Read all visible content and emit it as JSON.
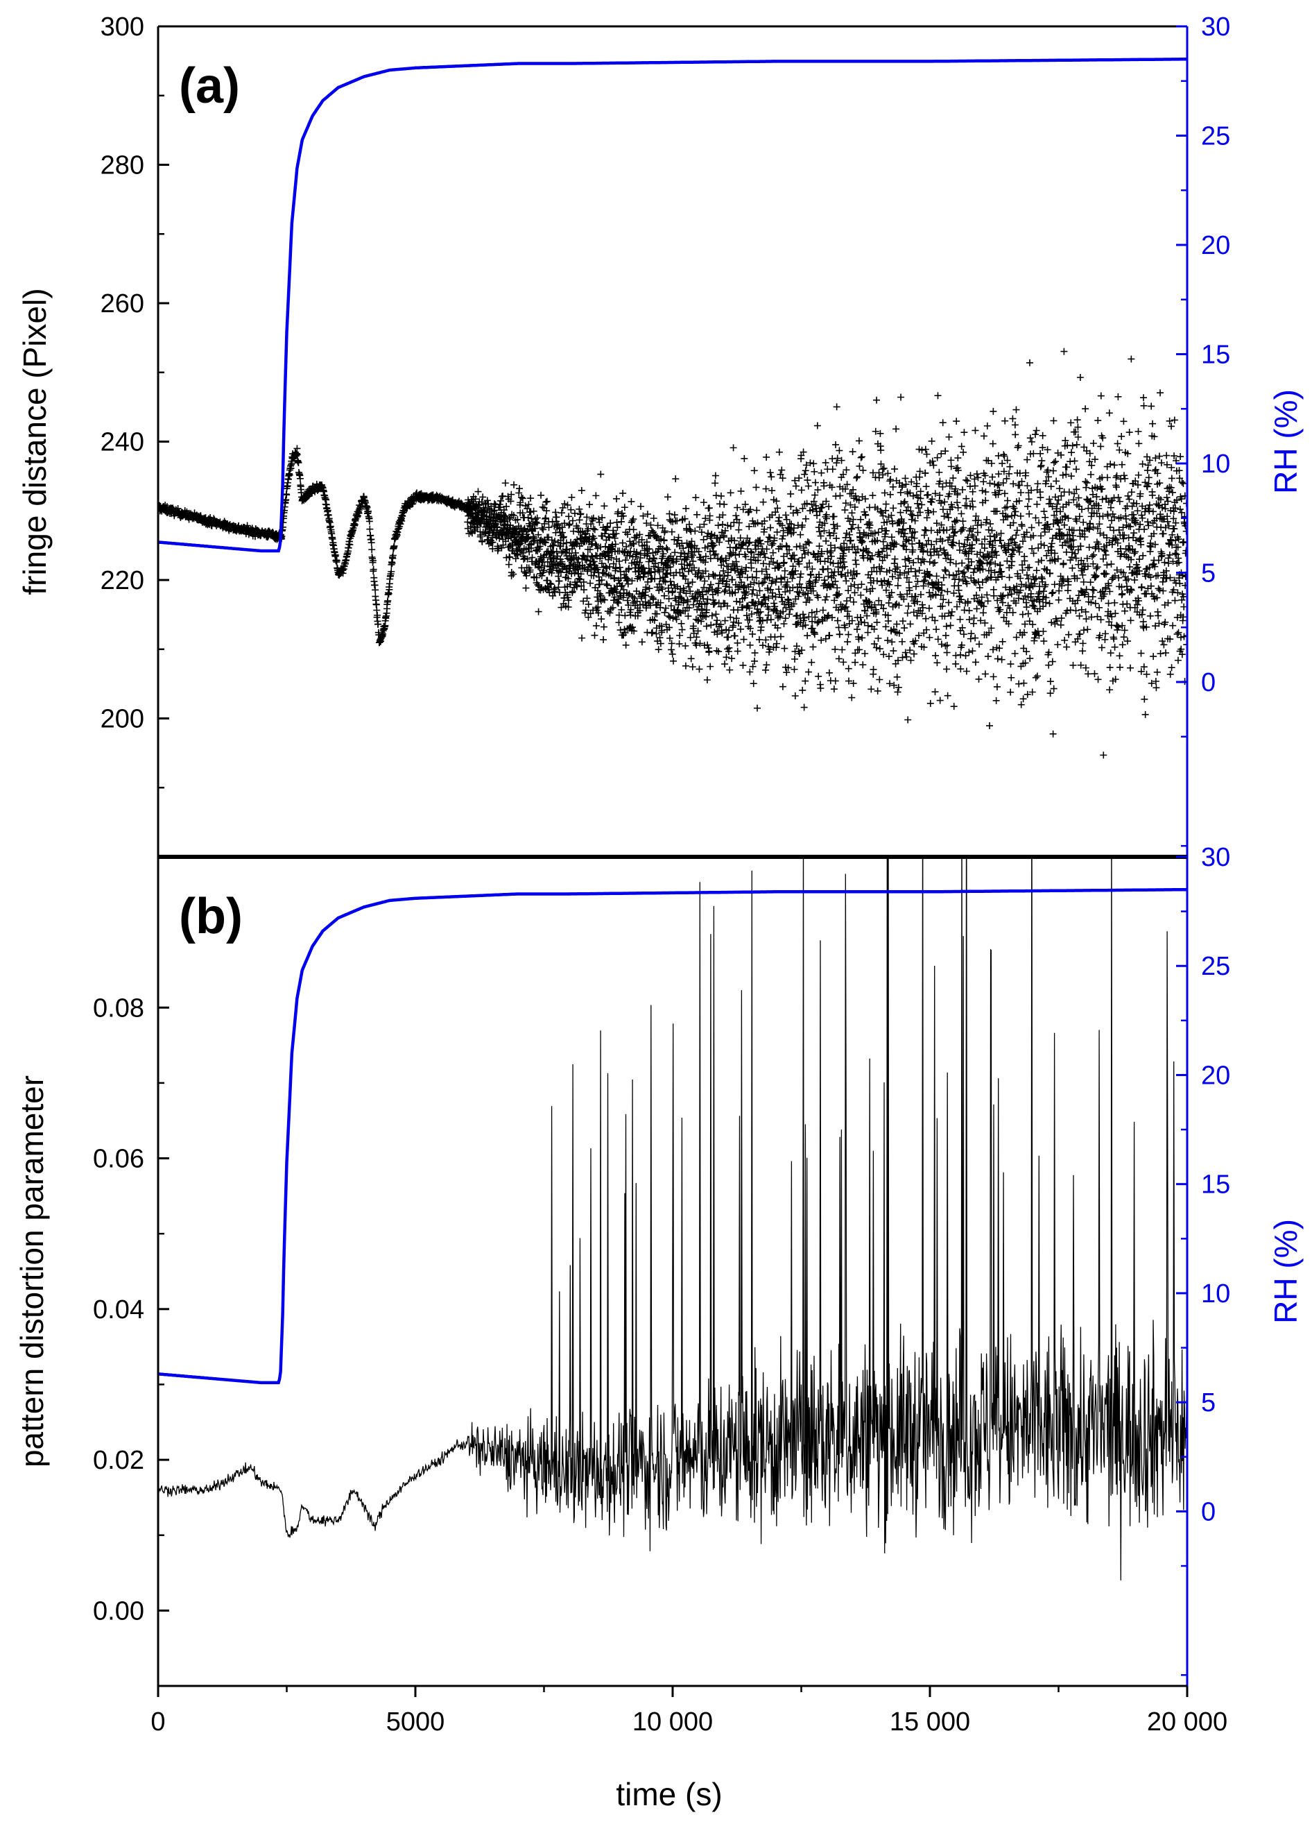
{
  "colors": {
    "axis": "#000000",
    "rh": "#0000ee",
    "data": "#000000"
  },
  "xaxis": {
    "label": "time (s)",
    "ticks": [
      0,
      5000,
      10000,
      15000,
      20000
    ],
    "tick_labels": [
      "0",
      "5000",
      "10 000",
      "15 000",
      "20 000"
    ],
    "range": [
      0,
      20000
    ]
  },
  "chart_data": [
    {
      "type": "scatter",
      "panel_label": "(a)",
      "ylabel": "fringe distance (Pixel)",
      "ylim": [
        180,
        300
      ],
      "yticks": [
        200,
        220,
        240,
        260,
        280,
        300
      ],
      "ytick_labels": [
        "200",
        "220",
        "240",
        "260",
        "280",
        "300"
      ],
      "y2label": "RH (%)",
      "y2lim": [
        -8,
        30
      ],
      "y2ticks": [
        0,
        5,
        10,
        15,
        20,
        25,
        30
      ],
      "y2tick_labels": [
        "0",
        "5",
        "10",
        "15",
        "20",
        "25",
        "30"
      ],
      "series": [
        {
          "marker": "+",
          "axis": "left",
          "x": [
            0,
            500,
            1000,
            1500,
            2000,
            2400,
            2500,
            2600,
            2700,
            2800,
            3000,
            3200,
            3400,
            3500,
            3600,
            3800,
            4000,
            4100,
            4200,
            4300,
            4400,
            4600,
            4800,
            5000,
            5300,
            5600,
            6000,
            6500,
            7000,
            7500,
            8000
          ],
          "y": [
            230.5,
            229.5,
            228.5,
            227.5,
            226.8,
            226.3,
            233,
            237.5,
            238.5,
            231.5,
            233,
            233.5,
            225.5,
            221,
            221.5,
            228,
            232,
            229,
            220,
            211,
            213,
            226,
            230.5,
            232,
            232,
            231.5,
            230.5,
            228.5,
            226.5,
            224,
            222
          ],
          "scatter_band": {
            "x": [
              6000,
              8000,
              10000,
              12000,
              15000,
              20000
            ],
            "y_center": [
              230,
              223,
              220,
              221,
              224,
              225
            ],
            "y_spread": [
              3,
              10,
              13,
              18,
              22,
              24
            ]
          }
        },
        {
          "name": "RH (%)",
          "axis": "right",
          "color": "#0000ee",
          "x": [
            0,
            500,
            1000,
            1500,
            2000,
            2350,
            2380,
            2420,
            2450,
            2500,
            2600,
            2700,
            2800,
            3000,
            3200,
            3500,
            4000,
            4500,
            5000,
            6000,
            7000,
            8000,
            10000,
            12000,
            15000,
            20000
          ],
          "y": [
            6.4,
            6.3,
            6.2,
            6.1,
            6.0,
            6.0,
            6.5,
            9,
            12,
            16,
            21,
            23.5,
            24.8,
            25.9,
            26.6,
            27.2,
            27.7,
            28.0,
            28.1,
            28.2,
            28.3,
            28.3,
            28.35,
            28.4,
            28.4,
            28.5
          ]
        }
      ]
    },
    {
      "type": "line",
      "panel_label": "(b)",
      "ylabel": "pattern distortion parameter",
      "ylim": [
        -0.01,
        0.1
      ],
      "yticks": [
        0.0,
        0.02,
        0.04,
        0.06,
        0.08
      ],
      "ytick_labels": [
        "0.00",
        "0.02",
        "0.04",
        "0.06",
        "0.08"
      ],
      "y2label": "RH (%)",
      "y2lim": [
        -8,
        30
      ],
      "y2ticks": [
        0,
        5,
        10,
        15,
        20,
        25,
        30
      ],
      "y2tick_labels": [
        "0",
        "5",
        "10",
        "15",
        "20",
        "25",
        "30"
      ],
      "series": [
        {
          "axis": "left",
          "color": "#000000",
          "x": [
            0,
            500,
            1000,
            1500,
            1800,
            2000,
            2400,
            2500,
            2700,
            2800,
            3000,
            3300,
            3500,
            3800,
            4000,
            4200,
            4400,
            5000,
            5500,
            5800,
            6000
          ],
          "y": [
            0.016,
            0.016,
            0.016,
            0.018,
            0.019,
            0.017,
            0.016,
            0.01,
            0.011,
            0.014,
            0.012,
            0.012,
            0.012,
            0.016,
            0.014,
            0.011,
            0.014,
            0.018,
            0.02,
            0.022,
            0.022
          ],
          "noise_band": {
            "x": [
              6000,
              8000,
              10000,
              12000,
              15000,
              20000
            ],
            "y_center": [
              0.022,
              0.018,
              0.02,
              0.022,
              0.024,
              0.024
            ],
            "y_spread": [
              0.005,
              0.012,
              0.016,
              0.02,
              0.022,
              0.022
            ]
          }
        },
        {
          "name": "RH (%)",
          "axis": "right",
          "color": "#0000ee",
          "x": [
            0,
            500,
            1000,
            1500,
            2000,
            2350,
            2380,
            2420,
            2450,
            2500,
            2600,
            2700,
            2800,
            3000,
            3200,
            3500,
            4000,
            4500,
            5000,
            6000,
            7000,
            8000,
            10000,
            12000,
            15000,
            20000
          ],
          "y": [
            6.3,
            6.2,
            6.1,
            6.0,
            5.9,
            5.9,
            6.4,
            9,
            12,
            16,
            21,
            23.5,
            24.8,
            25.9,
            26.6,
            27.2,
            27.7,
            28.0,
            28.1,
            28.2,
            28.3,
            28.3,
            28.35,
            28.4,
            28.4,
            28.5
          ]
        }
      ]
    }
  ]
}
